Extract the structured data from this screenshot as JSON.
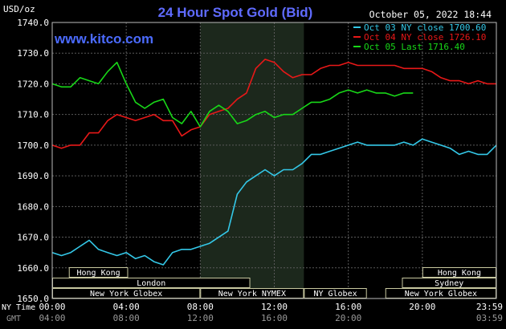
{
  "header": {
    "title": "24 Hour Spot Gold (Bid)",
    "unit": "USD/oz",
    "timestamp": "October 05, 2022 18:44",
    "brand": "www.kitco.com"
  },
  "timezone_labels": {
    "nytime": "NY Time",
    "gmt": "GMT"
  },
  "sessions": [
    {
      "name": "Hong Kong",
      "row": 0,
      "start": 0.9,
      "end": 4.1
    },
    {
      "name": "London",
      "row": 1,
      "start": 0.0,
      "end": 10.7
    },
    {
      "name": "New York Globex",
      "row": 2,
      "start": 0.0,
      "end": 8.0
    },
    {
      "name": "New York NYMEX",
      "row": 2,
      "start": 8.0,
      "end": 13.6
    },
    {
      "name": "NY Globex",
      "row": 2,
      "start": 13.6,
      "end": 17.0
    },
    {
      "name": "Hong Kong",
      "row": 0,
      "start": 20.0,
      "end": 24.0
    },
    {
      "name": "Sydney",
      "row": 1,
      "start": 18.9,
      "end": 24.0
    },
    {
      "name": "New York Globex",
      "row": 2,
      "start": 18.0,
      "end": 24.0
    }
  ],
  "colors": {
    "background": "#000000",
    "grid": "#5a5a5a",
    "highlight": "#1c281c",
    "title": "#5f6bff",
    "brand": "#4b6bff",
    "text": "#ffffff",
    "session_fill": "#000000",
    "session_border": "#c8c8a0"
  },
  "chart_data": {
    "type": "line",
    "xlabel": "",
    "ylabel": "USD/oz",
    "x_range_hours": [
      0,
      24
    ],
    "ylim": [
      1650,
      1740
    ],
    "y_ticks": [
      "1740.0",
      "1730.0",
      "1720.0",
      "1710.0",
      "1700.0",
      "1690.0",
      "1680.0",
      "1670.0",
      "1660.0",
      "1650.0"
    ],
    "x_ticks_ny": [
      "00:00",
      "04:00",
      "08:00",
      "12:00",
      "16:00",
      "20:00",
      "23:59"
    ],
    "x_ticks_gmt": [
      "04:00",
      "08:00",
      "12:00",
      "16:00",
      "20:00",
      "03:59"
    ],
    "highlight_hours": [
      8.0,
      13.6
    ],
    "grid": true,
    "legend_position": "top-right",
    "series": [
      {
        "name": "Oct 03 NY close 1700.60",
        "color": "#34c8e8",
        "x": [
          0,
          0.5,
          1,
          1.5,
          2,
          2.5,
          3,
          3.5,
          4,
          4.5,
          5,
          5.5,
          6,
          6.5,
          7,
          7.5,
          8,
          8.5,
          9,
          9.5,
          10,
          10.5,
          11,
          11.5,
          12,
          12.5,
          13,
          13.5,
          14,
          14.5,
          15,
          15.5,
          16,
          16.5,
          17,
          17.5,
          18,
          18.5,
          19,
          19.5,
          20,
          20.5,
          21,
          21.5,
          22,
          22.5,
          23,
          23.5,
          24
        ],
        "y": [
          1665,
          1664,
          1665,
          1667,
          1669,
          1666,
          1665,
          1664,
          1665,
          1663,
          1664,
          1662,
          1661,
          1665,
          1666,
          1666,
          1667,
          1668,
          1670,
          1672,
          1684,
          1688,
          1690,
          1692,
          1690,
          1692,
          1692,
          1694,
          1697,
          1697,
          1698,
          1699,
          1700,
          1701,
          1700,
          1700,
          1700,
          1700,
          1701,
          1700,
          1702,
          1701,
          1700,
          1699,
          1697,
          1698,
          1697,
          1697,
          1700
        ]
      },
      {
        "name": "Oct 04 NY close 1726.10",
        "color": "#e81818",
        "x": [
          0,
          0.5,
          1,
          1.5,
          2,
          2.5,
          3,
          3.5,
          4,
          4.5,
          5,
          5.5,
          6,
          6.5,
          7,
          7.5,
          8,
          8.5,
          9,
          9.5,
          10,
          10.5,
          11,
          11.5,
          12,
          12.5,
          13,
          13.5,
          14,
          14.5,
          15,
          15.5,
          16,
          16.5,
          17,
          17.5,
          18,
          18.5,
          19,
          19.5,
          20,
          20.5,
          21,
          21.5,
          22,
          22.5,
          23,
          23.5,
          24
        ],
        "y": [
          1700,
          1699,
          1700,
          1700,
          1704,
          1704,
          1708,
          1710,
          1709,
          1708,
          1709,
          1710,
          1708,
          1708,
          1703,
          1705,
          1706,
          1710,
          1711,
          1712,
          1715,
          1717,
          1725,
          1728,
          1727,
          1724,
          1722,
          1723,
          1723,
          1725,
          1726,
          1726,
          1727,
          1726,
          1726,
          1726,
          1726,
          1726,
          1725,
          1725,
          1725,
          1724,
          1722,
          1721,
          1721,
          1720,
          1721,
          1720,
          1720
        ]
      },
      {
        "name": "Oct 05 Last 1716.40",
        "color": "#18d818",
        "x": [
          0,
          0.5,
          1,
          1.5,
          2,
          2.5,
          3,
          3.5,
          4,
          4.5,
          5,
          5.5,
          6,
          6.5,
          7,
          7.5,
          8,
          8.5,
          9,
          9.5,
          10,
          10.5,
          11,
          11.5,
          12,
          12.5,
          13,
          13.5,
          14,
          14.5,
          15,
          15.5,
          16,
          16.5,
          17,
          17.5,
          18,
          18.5,
          19,
          19.5
        ],
        "y": [
          1720,
          1719,
          1719,
          1722,
          1721,
          1720,
          1724,
          1727,
          1720,
          1714,
          1712,
          1714,
          1715,
          1709,
          1707,
          1711,
          1706,
          1711,
          1713,
          1711,
          1707,
          1708,
          1710,
          1711,
          1709,
          1710,
          1710,
          1712,
          1714,
          1714,
          1715,
          1717,
          1718,
          1717,
          1718,
          1717,
          1717,
          1716,
          1717,
          1717
        ]
      }
    ]
  }
}
